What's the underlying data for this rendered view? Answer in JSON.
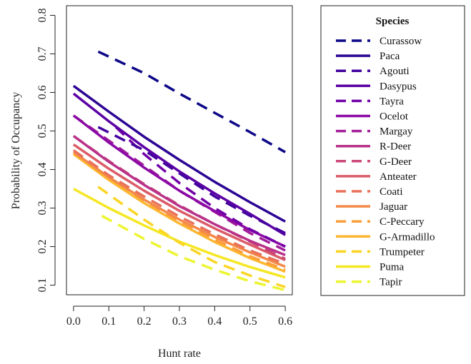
{
  "chart_data": {
    "type": "line",
    "xlabel": "Hunt rate",
    "ylabel": "Probability of Occupancy",
    "xlim": [
      -0.02,
      0.62
    ],
    "ylim": [
      0.075,
      0.825
    ],
    "xticks": [
      0.0,
      0.1,
      0.2,
      0.3,
      0.4,
      0.5,
      0.6
    ],
    "yticks": [
      0.1,
      0.2,
      0.3,
      0.4,
      0.5,
      0.6,
      0.7,
      0.8
    ],
    "grid": false,
    "legend": {
      "title": "Species",
      "placement": "right"
    },
    "series": [
      {
        "name": "Curassow",
        "color": "#0d0887",
        "dash": true,
        "x": [
          0.07,
          0.2,
          0.3,
          0.4,
          0.5,
          0.6
        ],
        "y": [
          0.706,
          0.65,
          0.597,
          0.547,
          0.497,
          0.445
        ]
      },
      {
        "name": "Paca",
        "color": "#2c0594",
        "dash": false,
        "x": [
          0.0,
          0.1,
          0.2,
          0.3,
          0.4,
          0.5,
          0.6
        ],
        "y": [
          0.617,
          0.55,
          0.485,
          0.425,
          0.368,
          0.315,
          0.265
        ]
      },
      {
        "name": "Agouti",
        "color": "#43039e",
        "dash": true,
        "x": [
          0.07,
          0.2,
          0.3,
          0.4,
          0.5,
          0.6
        ],
        "y": [
          0.51,
          0.45,
          0.39,
          0.33,
          0.28,
          0.235
        ]
      },
      {
        "name": "Dasypus",
        "color": "#5b01a5",
        "dash": false,
        "x": [
          0.0,
          0.1,
          0.2,
          0.3,
          0.4,
          0.5,
          0.6
        ],
        "y": [
          0.597,
          0.525,
          0.458,
          0.395,
          0.338,
          0.285,
          0.23
        ]
      },
      {
        "name": "Tayra",
        "color": "#7201a8",
        "dash": true,
        "x": [
          0.12,
          0.2,
          0.3,
          0.4,
          0.5,
          0.6
        ],
        "y": [
          0.51,
          0.44,
          0.365,
          0.3,
          0.245,
          0.2
        ]
      },
      {
        "name": "Ocelot",
        "color": "#8b0aa5",
        "dash": false,
        "x": [
          0.0,
          0.1,
          0.2,
          0.3,
          0.4,
          0.5,
          0.6
        ],
        "y": [
          0.54,
          0.47,
          0.405,
          0.345,
          0.292,
          0.243,
          0.2
        ]
      },
      {
        "name": "Margay",
        "color": "#a21d9a",
        "dash": true,
        "x": [
          0.0,
          0.1,
          0.2,
          0.3,
          0.4,
          0.5,
          0.6
        ],
        "y": [
          0.54,
          0.475,
          0.41,
          0.345,
          0.29,
          0.235,
          0.19
        ]
      },
      {
        "name": "R-Deer",
        "color": "#b83289",
        "dash": false,
        "x": [
          0.0,
          0.1,
          0.2,
          0.3,
          0.4,
          0.5,
          0.6
        ],
        "y": [
          0.487,
          0.42,
          0.36,
          0.305,
          0.258,
          0.215,
          0.178
        ]
      },
      {
        "name": "G-Deer",
        "color": "#cc4778",
        "dash": true,
        "x": [
          0.0,
          0.1,
          0.2,
          0.3,
          0.4,
          0.5,
          0.6
        ],
        "y": [
          0.487,
          0.422,
          0.362,
          0.307,
          0.258,
          0.213,
          0.168
        ]
      },
      {
        "name": "Anteater",
        "color": "#db5c68",
        "dash": false,
        "x": [
          0.0,
          0.1,
          0.2,
          0.3,
          0.4,
          0.5,
          0.6
        ],
        "y": [
          0.465,
          0.402,
          0.345,
          0.293,
          0.247,
          0.205,
          0.165
        ]
      },
      {
        "name": "Coati",
        "color": "#e97158",
        "dash": true,
        "x": [
          0.0,
          0.1,
          0.2,
          0.3,
          0.4,
          0.5,
          0.6
        ],
        "y": [
          0.45,
          0.385,
          0.33,
          0.278,
          0.232,
          0.19,
          0.155
        ]
      },
      {
        "name": "Jaguar",
        "color": "#f48849",
        "dash": false,
        "x": [
          0.0,
          0.1,
          0.2,
          0.3,
          0.4,
          0.5,
          0.6
        ],
        "y": [
          0.445,
          0.38,
          0.322,
          0.27,
          0.225,
          0.185,
          0.148
        ]
      },
      {
        "name": "C-Peccary",
        "color": "#fb9f3a",
        "dash": true,
        "x": [
          0.0,
          0.1,
          0.2,
          0.3,
          0.4,
          0.5,
          0.6
        ],
        "y": [
          0.445,
          0.38,
          0.32,
          0.265,
          0.218,
          0.175,
          0.14
        ]
      },
      {
        "name": "G-Armadillo",
        "color": "#fdb62f",
        "dash": false,
        "x": [
          0.0,
          0.1,
          0.2,
          0.3,
          0.4,
          0.5,
          0.6
        ],
        "y": [
          0.44,
          0.373,
          0.313,
          0.26,
          0.212,
          0.17,
          0.135
        ]
      },
      {
        "name": "Trumpeter",
        "color": "#fbd524",
        "dash": true,
        "x": [
          0.07,
          0.2,
          0.3,
          0.4,
          0.5,
          0.6
        ],
        "y": [
          0.355,
          0.27,
          0.21,
          0.16,
          0.125,
          0.095
        ]
      },
      {
        "name": "Puma",
        "color": "#f5e723",
        "dash": false,
        "x": [
          0.0,
          0.1,
          0.2,
          0.3,
          0.4,
          0.5,
          0.6
        ],
        "y": [
          0.35,
          0.3,
          0.255,
          0.213,
          0.178,
          0.147,
          0.12
        ]
      },
      {
        "name": "Tapir",
        "color": "#edf532",
        "dash": true,
        "x": [
          0.08,
          0.2,
          0.3,
          0.4,
          0.5,
          0.6
        ],
        "y": [
          0.28,
          0.22,
          0.175,
          0.14,
          0.11,
          0.087
        ]
      }
    ]
  }
}
